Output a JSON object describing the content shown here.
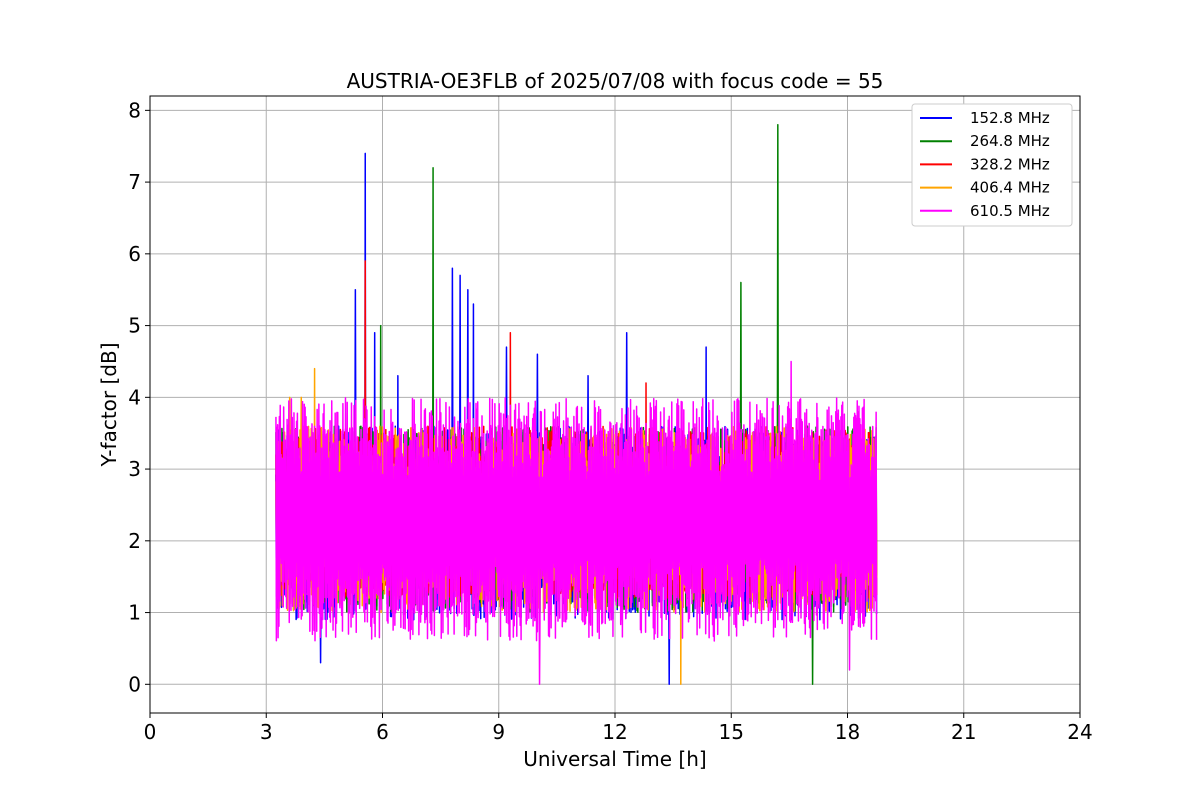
{
  "chart_data": {
    "type": "line",
    "title": "AUSTRIA-OE3FLB of 2025/07/08 with focus code = 55",
    "xlabel": "Universal Time [h]",
    "ylabel": "Y-factor [dB]",
    "xlim": [
      0,
      24
    ],
    "ylim": [
      -0.4,
      8.2
    ],
    "xticks": [
      0,
      3,
      6,
      9,
      12,
      15,
      18,
      21,
      24
    ],
    "yticks": [
      0,
      1,
      2,
      3,
      4,
      5,
      6,
      7,
      8
    ],
    "xtick_labels": [
      "0",
      "3",
      "6",
      "9",
      "12",
      "15",
      "18",
      "21",
      "24"
    ],
    "ytick_labels": [
      "0",
      "1",
      "2",
      "3",
      "4",
      "5",
      "6",
      "7",
      "8"
    ],
    "grid": true,
    "legend_position": "top-right",
    "time_range_h": [
      3.25,
      18.75
    ],
    "series": [
      {
        "name": "152.8 MHz",
        "color": "#0000ff",
        "band_low": 0.9,
        "band_high": 3.6,
        "spikes": [
          {
            "x": 5.3,
            "y": 5.5
          },
          {
            "x": 5.55,
            "y": 7.4
          },
          {
            "x": 5.8,
            "y": 4.9
          },
          {
            "x": 6.4,
            "y": 4.3
          },
          {
            "x": 7.8,
            "y": 5.8
          },
          {
            "x": 8.0,
            "y": 5.7
          },
          {
            "x": 8.2,
            "y": 5.5
          },
          {
            "x": 8.35,
            "y": 5.3
          },
          {
            "x": 9.2,
            "y": 4.7
          },
          {
            "x": 10.0,
            "y": 4.6
          },
          {
            "x": 11.3,
            "y": 4.3
          },
          {
            "x": 12.3,
            "y": 4.9
          },
          {
            "x": 14.35,
            "y": 4.7
          },
          {
            "x": 13.4,
            "y": 0.0
          },
          {
            "x": 4.4,
            "y": 0.3
          }
        ]
      },
      {
        "name": "264.8 MHz",
        "color": "#008000",
        "band_low": 1.0,
        "band_high": 3.6,
        "spikes": [
          {
            "x": 5.95,
            "y": 5.0
          },
          {
            "x": 7.3,
            "y": 7.2
          },
          {
            "x": 15.25,
            "y": 5.6
          },
          {
            "x": 16.2,
            "y": 7.8
          },
          {
            "x": 17.1,
            "y": 0.0
          }
        ]
      },
      {
        "name": "328.2 MHz",
        "color": "#ff0000",
        "band_low": 1.2,
        "band_high": 3.6,
        "spikes": [
          {
            "x": 5.55,
            "y": 5.9
          },
          {
            "x": 9.3,
            "y": 4.9
          },
          {
            "x": 12.8,
            "y": 4.2
          }
        ]
      },
      {
        "name": "406.4 MHz",
        "color": "#ffa500",
        "band_low": 1.0,
        "band_high": 3.6,
        "spikes": [
          {
            "x": 3.6,
            "y": 4.0
          },
          {
            "x": 3.9,
            "y": 4.0
          },
          {
            "x": 4.25,
            "y": 4.4
          },
          {
            "x": 13.7,
            "y": 0.0
          }
        ]
      },
      {
        "name": "610.5 MHz",
        "color": "#ff00ff",
        "band_low": 0.6,
        "band_high": 4.0,
        "spikes": [
          {
            "x": 10.05,
            "y": 0.0
          },
          {
            "x": 16.55,
            "y": 4.5
          },
          {
            "x": 18.05,
            "y": 0.2
          }
        ]
      }
    ]
  }
}
